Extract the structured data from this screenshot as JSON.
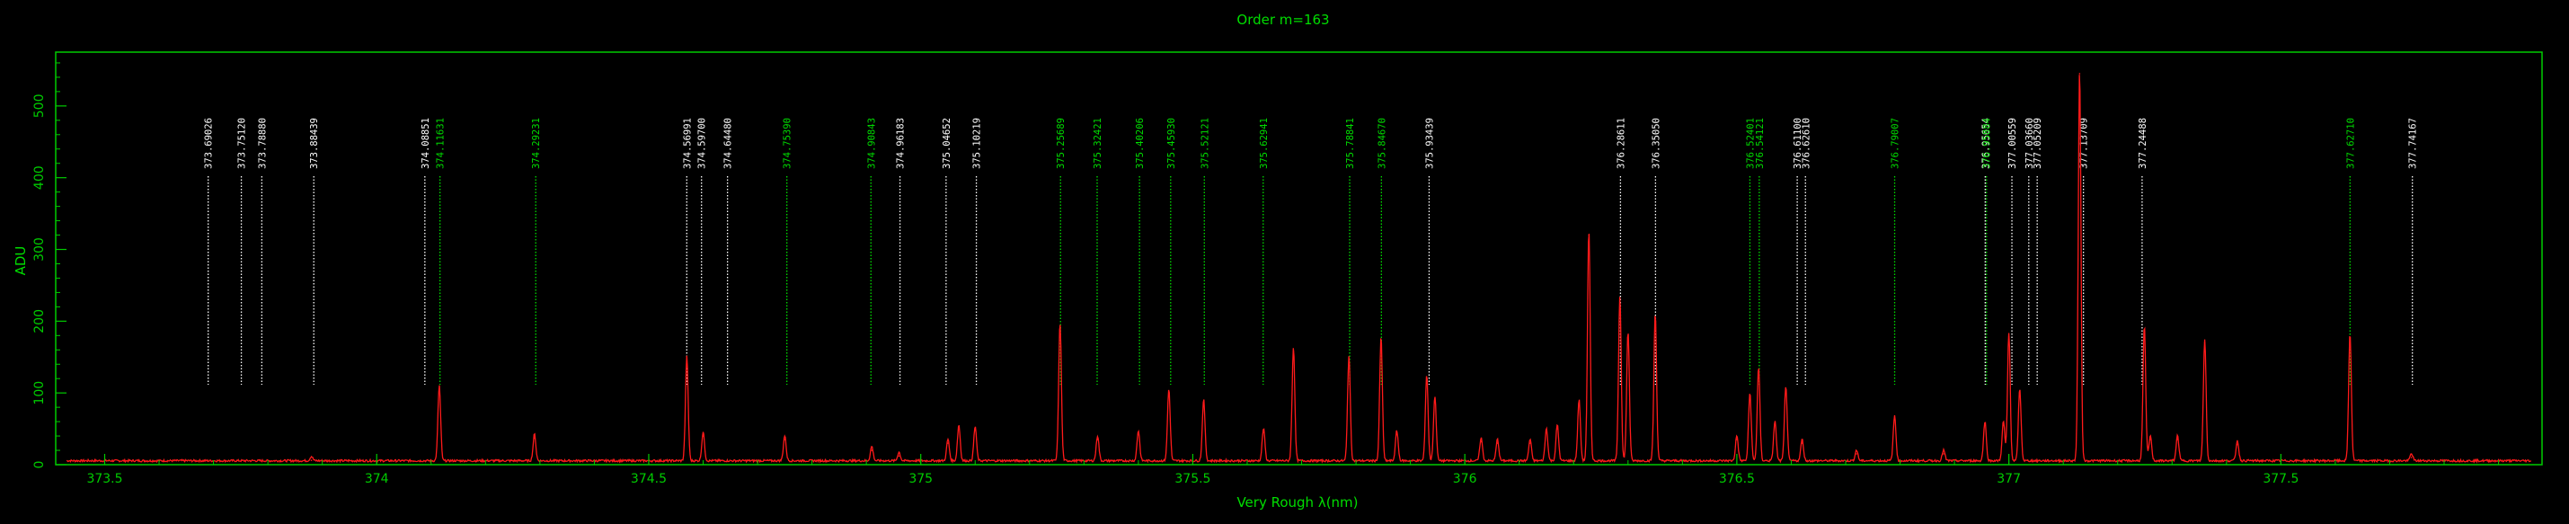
{
  "chart_data": {
    "type": "line",
    "title": "Order m=163",
    "xlabel": "Very Rough λ(nm)",
    "ylabel": "ADU",
    "xlim": [
      373.41,
      377.98
    ],
    "ylim": [
      0,
      575
    ],
    "x_ticks": [
      373.5,
      374,
      374.5,
      375,
      375.5,
      376,
      376.5,
      377,
      377.5
    ],
    "x_tick_labels": [
      "373.5",
      "374",
      "374.5",
      "375",
      "375.5",
      "376",
      "376.5",
      "377",
      "377.5"
    ],
    "y_ticks": [
      0,
      100,
      200,
      300,
      400,
      500
    ],
    "y_tick_labels": [
      "0",
      "100",
      "200",
      "300",
      "400",
      "500"
    ],
    "grid": false,
    "colors": {
      "background": "#000000",
      "frame": "#00cc00",
      "spectrum": "#ff1a1a",
      "catalog_line": "#ffffff",
      "identified_line": "#00dd00"
    },
    "series": [
      {
        "type": "spectrum",
        "baseline": 4,
        "peaks": [
          {
            "x": 373.88,
            "y": 6
          },
          {
            "x": 374.115,
            "y": 105
          },
          {
            "x": 374.29,
            "y": 37
          },
          {
            "x": 374.57,
            "y": 145
          },
          {
            "x": 374.6,
            "y": 40
          },
          {
            "x": 374.75,
            "y": 35
          },
          {
            "x": 374.91,
            "y": 20
          },
          {
            "x": 374.96,
            "y": 12
          },
          {
            "x": 375.05,
            "y": 30
          },
          {
            "x": 375.07,
            "y": 50
          },
          {
            "x": 375.1,
            "y": 48
          },
          {
            "x": 375.256,
            "y": 193
          },
          {
            "x": 375.325,
            "y": 35
          },
          {
            "x": 375.4,
            "y": 42
          },
          {
            "x": 375.456,
            "y": 100
          },
          {
            "x": 375.52,
            "y": 85
          },
          {
            "x": 375.63,
            "y": 45
          },
          {
            "x": 375.685,
            "y": 158
          },
          {
            "x": 375.787,
            "y": 147
          },
          {
            "x": 375.846,
            "y": 172
          },
          {
            "x": 375.875,
            "y": 42
          },
          {
            "x": 375.93,
            "y": 120
          },
          {
            "x": 375.945,
            "y": 90
          },
          {
            "x": 376.03,
            "y": 32
          },
          {
            "x": 376.06,
            "y": 30
          },
          {
            "x": 376.12,
            "y": 30
          },
          {
            "x": 376.15,
            "y": 45
          },
          {
            "x": 376.17,
            "y": 50
          },
          {
            "x": 376.21,
            "y": 85
          },
          {
            "x": 376.228,
            "y": 320
          },
          {
            "x": 376.285,
            "y": 230
          },
          {
            "x": 376.3,
            "y": 180
          },
          {
            "x": 376.35,
            "y": 205
          },
          {
            "x": 376.5,
            "y": 35
          },
          {
            "x": 376.524,
            "y": 95
          },
          {
            "x": 376.54,
            "y": 130
          },
          {
            "x": 376.57,
            "y": 55
          },
          {
            "x": 376.59,
            "y": 105
          },
          {
            "x": 376.62,
            "y": 30
          },
          {
            "x": 376.72,
            "y": 15
          },
          {
            "x": 376.79,
            "y": 63
          },
          {
            "x": 376.88,
            "y": 15
          },
          {
            "x": 376.956,
            "y": 55
          },
          {
            "x": 376.99,
            "y": 55
          },
          {
            "x": 377.0,
            "y": 178
          },
          {
            "x": 377.02,
            "y": 100
          },
          {
            "x": 377.13,
            "y": 545
          },
          {
            "x": 377.249,
            "y": 188
          },
          {
            "x": 377.26,
            "y": 35
          },
          {
            "x": 377.31,
            "y": 35
          },
          {
            "x": 377.36,
            "y": 170
          },
          {
            "x": 377.42,
            "y": 28
          },
          {
            "x": 377.627,
            "y": 178
          },
          {
            "x": 377.74,
            "y": 10
          }
        ]
      }
    ],
    "line_markers": [
      {
        "wavelength": 373.69026,
        "label": "373.69026",
        "identified": false
      },
      {
        "wavelength": 373.7512,
        "label": "373.75120",
        "identified": false
      },
      {
        "wavelength": 373.7888,
        "label": "373.78880",
        "identified": false
      },
      {
        "wavelength": 373.88439,
        "label": "373.88439",
        "identified": false
      },
      {
        "wavelength": 374.08851,
        "label": "374.08851",
        "identified": false
      },
      {
        "wavelength": 374.11631,
        "label": "374.11631",
        "identified": true
      },
      {
        "wavelength": 374.29231,
        "label": "374.29231",
        "identified": true
      },
      {
        "wavelength": 374.56991,
        "label": "374.56991",
        "identified": false
      },
      {
        "wavelength": 374.597,
        "label": "374.59700",
        "identified": false
      },
      {
        "wavelength": 374.6448,
        "label": "374.64480",
        "identified": false
      },
      {
        "wavelength": 374.7539,
        "label": "374.75390",
        "identified": true
      },
      {
        "wavelength": 374.90843,
        "label": "374.90843",
        "identified": true
      },
      {
        "wavelength": 374.96183,
        "label": "374.96183",
        "identified": false
      },
      {
        "wavelength": 375.04652,
        "label": "375.04652",
        "identified": false
      },
      {
        "wavelength": 375.10219,
        "label": "375.10219",
        "identified": false
      },
      {
        "wavelength": 375.25689,
        "label": "375.25689",
        "identified": true
      },
      {
        "wavelength": 375.32421,
        "label": "375.32421",
        "identified": true
      },
      {
        "wavelength": 375.40206,
        "label": "375.40206",
        "identified": true
      },
      {
        "wavelength": 375.4593,
        "label": "375.45930",
        "identified": true
      },
      {
        "wavelength": 375.52121,
        "label": "375.52121",
        "identified": true
      },
      {
        "wavelength": 375.62941,
        "label": "375.62941",
        "identified": true
      },
      {
        "wavelength": 375.78841,
        "label": "375.78841",
        "identified": true
      },
      {
        "wavelength": 375.8467,
        "label": "375.84670",
        "identified": true
      },
      {
        "wavelength": 375.93439,
        "label": "375.93439",
        "identified": false
      },
      {
        "wavelength": 376.28611,
        "label": "376.28611",
        "identified": false
      },
      {
        "wavelength": 376.3505,
        "label": "376.35050",
        "identified": false
      },
      {
        "wavelength": 376.52401,
        "label": "376.52401",
        "identified": true
      },
      {
        "wavelength": 376.54121,
        "label": "376.54121",
        "identified": true
      },
      {
        "wavelength": 376.611,
        "label": "376.61100",
        "identified": false
      },
      {
        "wavelength": 376.6261,
        "label": "376.62610",
        "identified": false
      },
      {
        "wavelength": 376.79007,
        "label": "376.79007",
        "identified": true
      },
      {
        "wavelength": 376.95654,
        "label": "376.95654",
        "identified": false
      },
      {
        "wavelength": 376.95884,
        "label": "376.95884",
        "identified": true
      },
      {
        "wavelength": 377.00559,
        "label": "377.00559",
        "identified": false
      },
      {
        "wavelength": 377.0366,
        "label": "377.03660",
        "identified": false
      },
      {
        "wavelength": 377.05209,
        "label": "377.05209",
        "identified": false
      },
      {
        "wavelength": 377.13709,
        "label": "377.13709",
        "identified": false
      },
      {
        "wavelength": 377.24488,
        "label": "377.24488",
        "identified": false
      },
      {
        "wavelength": 377.6271,
        "label": "377.62710",
        "identified": true
      },
      {
        "wavelength": 377.74167,
        "label": "377.74167",
        "identified": false
      }
    ]
  }
}
